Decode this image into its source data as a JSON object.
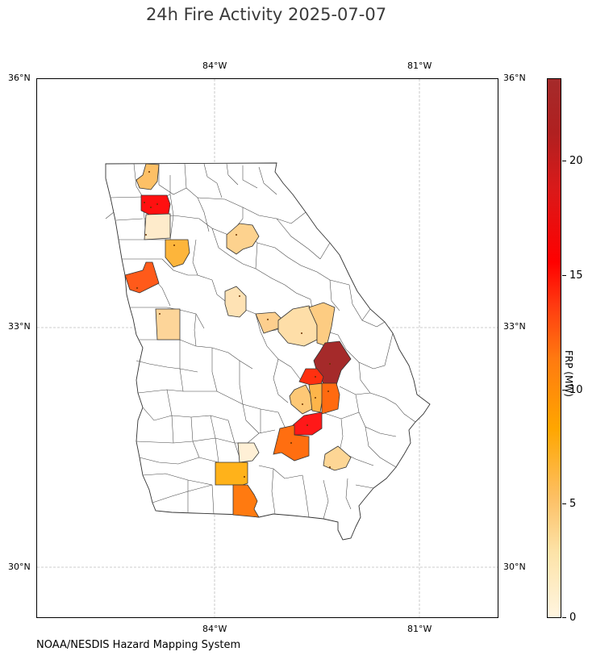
{
  "title": "24h Fire Activity 2025-07-07",
  "source": "NOAA/NESDIS Hazard Mapping System",
  "axes": {
    "lon_labels": [
      "84°W",
      "81°W"
    ],
    "lat_labels": [
      "36°N",
      "33°N",
      "30°N"
    ]
  },
  "colorbar": {
    "label": "FRP (MW)",
    "ticks": [
      "0",
      "5",
      "10",
      "15",
      "20"
    ],
    "range": [
      0,
      23.5
    ],
    "colors": [
      "#fff5e0",
      "#fdc066",
      "#ffa600",
      "#ff3a10",
      "#ff0000",
      "#a52a2a"
    ]
  },
  "map": {
    "region": "Georgia",
    "extent": {
      "lon": [
        -86.6,
        -79.85
      ],
      "lat": [
        29.25,
        36.0
      ]
    },
    "gridlines": true,
    "fire_counties": [
      {
        "frp": 4.5
      },
      {
        "frp": 16.0
      },
      {
        "frp": 1.5
      },
      {
        "frp": 6.0
      },
      {
        "frp": 13.0
      },
      {
        "frp": 3.5
      },
      {
        "frp": 2.0
      },
      {
        "frp": 3.0
      },
      {
        "frp": 4.0
      },
      {
        "frp": 2.5
      },
      {
        "frp": 4.0
      },
      {
        "frp": 23.0
      },
      {
        "frp": 15.0
      },
      {
        "frp": 3.5
      },
      {
        "frp": 5.0
      },
      {
        "frp": 11.5
      },
      {
        "frp": 17.0
      },
      {
        "frp": 12.0
      },
      {
        "frp": 1.5
      },
      {
        "frp": 3.0
      },
      {
        "frp": 7.0
      },
      {
        "frp": 10.5
      }
    ]
  }
}
